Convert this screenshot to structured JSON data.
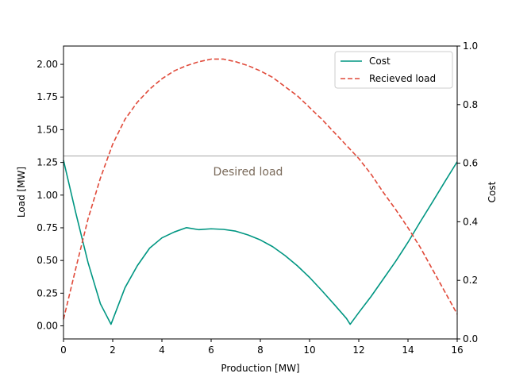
{
  "chart_data": {
    "type": "line",
    "xlabel": "Production [MW]",
    "ylabel": "Load [MW]",
    "y2label": "Cost",
    "xlim": [
      0,
      16
    ],
    "ylim": [
      -0.1,
      2.14
    ],
    "y2lim": [
      0,
      1.0
    ],
    "xticks": [
      0,
      2,
      4,
      6,
      8,
      10,
      12,
      14,
      16
    ],
    "yticks": [
      0.0,
      0.25,
      0.5,
      0.75,
      1.0,
      1.25,
      1.5,
      1.75,
      2.0
    ],
    "y2ticks": [
      0.0,
      0.2,
      0.4,
      0.6,
      0.8,
      1.0
    ],
    "grid": false,
    "legend_position": "top-right",
    "reference_line": {
      "y": 1.3,
      "label": "Desired load",
      "label_x": 7.5,
      "label_y": 1.15,
      "color": "#888888"
    },
    "series": [
      {
        "name": "Cost",
        "axis": "right",
        "style": "solid",
        "color": "#009682",
        "x": [
          0,
          0.5,
          1.0,
          1.5,
          1.93,
          2.5,
          3.0,
          3.5,
          4.0,
          4.5,
          5.0,
          5.5,
          6.0,
          6.5,
          7.0,
          7.5,
          8.0,
          8.5,
          9.0,
          9.5,
          10.0,
          10.5,
          11.0,
          11.5,
          11.65,
          12.0,
          12.5,
          13.0,
          13.5,
          14.0,
          14.5,
          15.0,
          15.5,
          16.0
        ],
        "y": [
          0.61,
          0.43,
          0.26,
          0.12,
          0.05,
          0.175,
          0.25,
          0.31,
          0.345,
          0.365,
          0.38,
          0.373,
          0.376,
          0.374,
          0.368,
          0.355,
          0.338,
          0.315,
          0.285,
          0.25,
          0.21,
          0.165,
          0.118,
          0.07,
          0.05,
          0.09,
          0.145,
          0.205,
          0.265,
          0.33,
          0.4,
          0.468,
          0.537,
          0.605
        ]
      },
      {
        "name": "Recieved load",
        "axis": "left",
        "style": "dashed",
        "color": "#E04A3A",
        "x": [
          0,
          0.5,
          1.0,
          1.5,
          2.0,
          2.5,
          3.0,
          3.5,
          4.0,
          4.5,
          5.0,
          5.5,
          6.0,
          6.5,
          7.0,
          7.5,
          8.0,
          8.5,
          9.0,
          9.5,
          10.0,
          10.5,
          11.0,
          11.5,
          12.0,
          12.5,
          13.0,
          13.5,
          14.0,
          14.5,
          15.0,
          15.5,
          16.0
        ],
        "y": [
          0.05,
          0.44,
          0.82,
          1.13,
          1.39,
          1.58,
          1.71,
          1.81,
          1.89,
          1.95,
          1.99,
          2.02,
          2.04,
          2.04,
          2.02,
          1.99,
          1.95,
          1.9,
          1.83,
          1.76,
          1.67,
          1.58,
          1.48,
          1.38,
          1.28,
          1.16,
          1.02,
          0.89,
          0.75,
          0.6,
          0.43,
          0.26,
          0.09
        ]
      }
    ]
  }
}
